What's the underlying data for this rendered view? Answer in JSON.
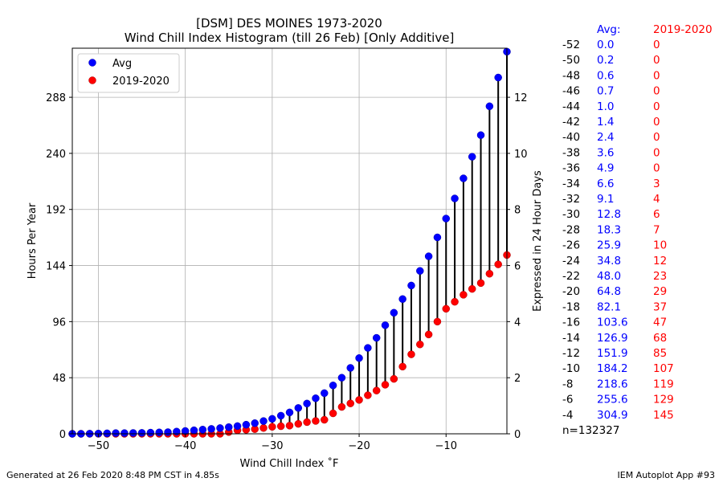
{
  "chart_data": {
    "type": "scatter",
    "title_line1": "[DSM] DES MOINES 1973-2020",
    "title_line2": "Wind Chill Index Histogram (till 26 Feb) [Only Additive]",
    "xlabel": "Wind Chill Index $^\\circ$F",
    "xlabel_display": "Wind Chill Index ˚F",
    "ylabel": "Hours Per Year",
    "y2label": "Expressed in 24 Hour Days",
    "xlim": [
      -53,
      -3
    ],
    "ylim": [
      0,
      330
    ],
    "y2lim": [
      0,
      13.75
    ],
    "xticks": [
      "−50",
      "−40",
      "−30",
      "−20",
      "−10"
    ],
    "yticks": [
      "0",
      "48",
      "96",
      "144",
      "192",
      "240",
      "288"
    ],
    "y2ticks": [
      "0",
      "2",
      "4",
      "6",
      "8",
      "10",
      "12"
    ],
    "grid": true,
    "legend_position": "upper-left",
    "colors": {
      "avg": "#0000ff",
      "season": "#ff0000",
      "connector": "#000000"
    },
    "x": [
      -53,
      -52,
      -51,
      -50,
      -49,
      -48,
      -47,
      -46,
      -45,
      -44,
      -43,
      -42,
      -41,
      -40,
      -39,
      -38,
      -37,
      -36,
      -35,
      -34,
      -33,
      -32,
      -31,
      -30,
      -29,
      -28,
      -27,
      -26,
      -25,
      -24,
      -23,
      -22,
      -21,
      -20,
      -19,
      -18,
      -17,
      -16,
      -15,
      -14,
      -13,
      -12,
      -11,
      -10,
      -9,
      -8,
      -7,
      -6,
      -5,
      -4,
      -3
    ],
    "series": [
      {
        "name": "Avg",
        "values": [
          0.0,
          0.0,
          0.1,
          0.2,
          0.4,
          0.6,
          0.6,
          0.7,
          0.8,
          1.0,
          1.2,
          1.4,
          1.9,
          2.4,
          3.0,
          3.6,
          4.2,
          4.9,
          5.7,
          6.6,
          7.8,
          9.1,
          10.9,
          12.8,
          15.5,
          18.3,
          22.1,
          25.9,
          30.4,
          34.8,
          41.4,
          48.0,
          56.4,
          64.8,
          73.5,
          82.1,
          92.9,
          103.6,
          115.3,
          126.9,
          139.4,
          151.9,
          168.1,
          184.2,
          201.4,
          218.6,
          237.1,
          255.6,
          280.3,
          304.9,
          327.0
        ]
      },
      {
        "name": "2019-2020",
        "values": [
          0,
          0,
          0,
          0,
          0,
          0,
          0,
          0,
          0,
          0,
          0,
          0,
          0,
          0,
          0,
          0,
          0,
          0,
          1.5,
          3,
          3.5,
          4,
          5,
          6,
          6.5,
          7,
          8.5,
          10,
          11,
          12,
          17.5,
          23,
          26,
          29,
          33,
          37,
          42,
          47,
          57.5,
          68,
          76.5,
          85,
          96,
          107,
          113,
          119,
          124,
          129,
          137,
          145,
          153
        ]
      }
    ],
    "table": {
      "header_avg": "Avg:",
      "header_season": "2019-2020",
      "rows": [
        {
          "bin": "-52",
          "avg": "0.0",
          "season": "0"
        },
        {
          "bin": "-50",
          "avg": "0.2",
          "season": "0"
        },
        {
          "bin": "-48",
          "avg": "0.6",
          "season": "0"
        },
        {
          "bin": "-46",
          "avg": "0.7",
          "season": "0"
        },
        {
          "bin": "-44",
          "avg": "1.0",
          "season": "0"
        },
        {
          "bin": "-42",
          "avg": "1.4",
          "season": "0"
        },
        {
          "bin": "-40",
          "avg": "2.4",
          "season": "0"
        },
        {
          "bin": "-38",
          "avg": "3.6",
          "season": "0"
        },
        {
          "bin": "-36",
          "avg": "4.9",
          "season": "0"
        },
        {
          "bin": "-34",
          "avg": "6.6",
          "season": "3"
        },
        {
          "bin": "-32",
          "avg": "9.1",
          "season": "4"
        },
        {
          "bin": "-30",
          "avg": "12.8",
          "season": "6"
        },
        {
          "bin": "-28",
          "avg": "18.3",
          "season": "7"
        },
        {
          "bin": "-26",
          "avg": "25.9",
          "season": "10"
        },
        {
          "bin": "-24",
          "avg": "34.8",
          "season": "12"
        },
        {
          "bin": "-22",
          "avg": "48.0",
          "season": "23"
        },
        {
          "bin": "-20",
          "avg": "64.8",
          "season": "29"
        },
        {
          "bin": "-18",
          "avg": "82.1",
          "season": "37"
        },
        {
          "bin": "-16",
          "avg": "103.6",
          "season": "47"
        },
        {
          "bin": "-14",
          "avg": "126.9",
          "season": "68"
        },
        {
          "bin": "-12",
          "avg": "151.9",
          "season": "85"
        },
        {
          "bin": "-10",
          "avg": "184.2",
          "season": "107"
        },
        {
          "bin": "-8",
          "avg": "218.6",
          "season": "119"
        },
        {
          "bin": "-6",
          "avg": "255.6",
          "season": "129"
        },
        {
          "bin": "-4",
          "avg": "304.9",
          "season": "145"
        }
      ],
      "footer": "n=132327"
    }
  },
  "footer": {
    "left": "Generated at 26 Feb 2020 8:48 PM CST in 4.85s",
    "right": "IEM Autoplot App #93"
  }
}
